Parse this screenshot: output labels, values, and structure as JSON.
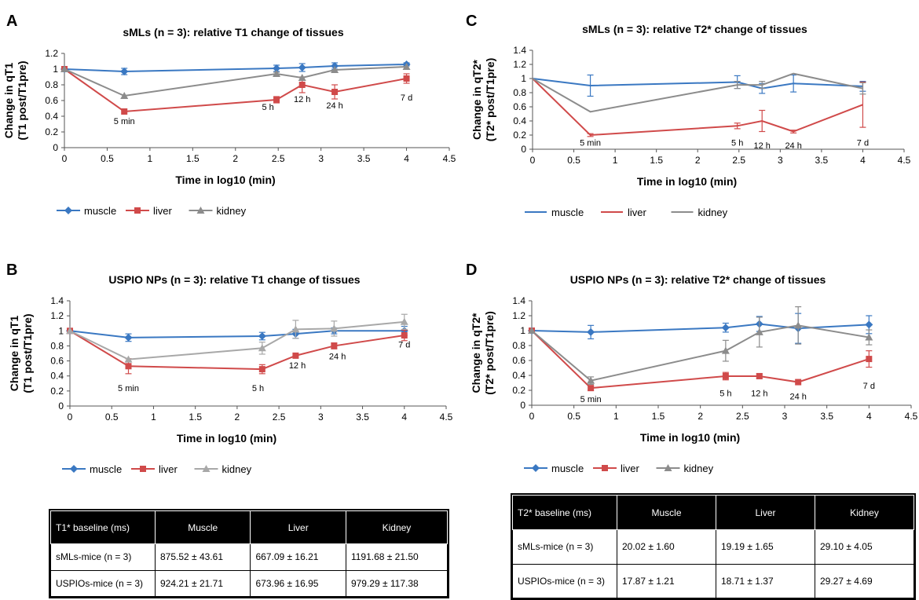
{
  "chart_data": [
    {
      "panel": "A",
      "type": "line",
      "title": "sMLs (n = 3): relative T1 change of tissues",
      "xlabel": "Time in log10 (min)",
      "ylabel": [
        "Change in qT1",
        "(T1 post/T1pre)"
      ],
      "xlim": [
        0,
        4.5
      ],
      "ylim": [
        0,
        1.2
      ],
      "xticks": [
        "0",
        "0.5",
        "1",
        "1.5",
        "2",
        "2.5",
        "3",
        "3.5",
        "4",
        "4.5"
      ],
      "yticks": [
        "0",
        "0.2",
        "0.4",
        "0.6",
        "0.8",
        "1",
        "1.2"
      ],
      "x": [
        0,
        0.7,
        2.48,
        2.78,
        3.16,
        4
      ],
      "annotations": [
        {
          "text": "5 min",
          "x": 0.7,
          "y": 0.3
        },
        {
          "text": "5 h",
          "x": 2.38,
          "y": 0.48
        },
        {
          "text": "12 h",
          "x": 2.78,
          "y": 0.58
        },
        {
          "text": "24 h",
          "x": 3.16,
          "y": 0.5
        },
        {
          "text": "7 d",
          "x": 4,
          "y": 0.6
        }
      ],
      "legend_style": "markers",
      "series": [
        {
          "name": "muscle",
          "color": "#3a78c2",
          "marker": "diamond",
          "values": [
            1.0,
            0.97,
            1.01,
            1.02,
            1.04,
            1.06
          ],
          "errors": [
            0,
            0.04,
            0.04,
            0.05,
            0.04,
            0.02
          ]
        },
        {
          "name": "liver",
          "color": "#d04a4a",
          "marker": "square",
          "values": [
            1.0,
            0.46,
            0.61,
            0.8,
            0.71,
            0.88
          ],
          "errors": [
            0,
            0,
            0.04,
            0.1,
            0.09,
            0.06
          ]
        },
        {
          "name": "kidney",
          "color": "#8c8c8c",
          "marker": "triangle",
          "values": [
            1.0,
            0.66,
            0.94,
            0.89,
            0.99,
            1.03
          ],
          "errors": [
            0,
            0,
            0.02,
            0,
            0,
            0
          ]
        }
      ]
    },
    {
      "panel": "B",
      "type": "line",
      "title": "USPIO NPs (n = 3): relative T1 change of tissues",
      "xlabel": "Time in log10 (min)",
      "ylabel": [
        "Change in qT1",
        "(T1 post/T1pre)"
      ],
      "xlim": [
        0,
        4.5
      ],
      "ylim": [
        0,
        1.4
      ],
      "xticks": [
        "0",
        "0.5",
        "1",
        "1.5",
        "2",
        "2.5",
        "3",
        "3.5",
        "4",
        "4.5"
      ],
      "yticks": [
        "0",
        "0.2",
        "0.4",
        "0.6",
        "0.8",
        "1",
        "1.2",
        "1.4"
      ],
      "x": [
        0,
        0.7,
        2.3,
        2.7,
        3.16,
        4
      ],
      "annotations": [
        {
          "text": "5 min",
          "x": 0.7,
          "y": 0.2
        },
        {
          "text": "5 h",
          "x": 2.25,
          "y": 0.2
        },
        {
          "text": "12 h",
          "x": 2.72,
          "y": 0.5
        },
        {
          "text": "24 h",
          "x": 3.2,
          "y": 0.62
        },
        {
          "text": "7 d",
          "x": 4,
          "y": 0.78
        }
      ],
      "legend_style": "markers",
      "series": [
        {
          "name": "muscle",
          "color": "#3a78c2",
          "marker": "diamond",
          "values": [
            1.0,
            0.91,
            0.93,
            0.96,
            1.0,
            1.0
          ],
          "errors": [
            0,
            0.05,
            0.05,
            0.06,
            0.04,
            0.06
          ]
        },
        {
          "name": "liver",
          "color": "#d04a4a",
          "marker": "square",
          "values": [
            1.0,
            0.53,
            0.49,
            0.67,
            0.8,
            0.94
          ],
          "errors": [
            0,
            0.1,
            0.06,
            0,
            0.04,
            0.07
          ]
        },
        {
          "name": "kidney",
          "color": "#a8a8a8",
          "marker": "triangle",
          "values": [
            1.0,
            0.62,
            0.77,
            1.02,
            1.03,
            1.12
          ],
          "errors": [
            0,
            0,
            0.08,
            0.12,
            0.1,
            0.1
          ]
        }
      ]
    },
    {
      "panel": "C",
      "type": "line",
      "title": "sMLs (n = 3): relative T2* change of tissues",
      "xlabel": "Time in log10 (min)",
      "ylabel": [
        "Change in qT2*",
        "(T2* post/T1pre)"
      ],
      "xlim": [
        0,
        4.5
      ],
      "ylim": [
        0,
        1.4
      ],
      "xticks": [
        "0",
        "0.5",
        "1",
        "1.5",
        "2",
        "2.5",
        "3",
        "3.5",
        "4",
        "4.5"
      ],
      "yticks": [
        "0",
        "0.2",
        "0.4",
        "0.6",
        "0.8",
        "1",
        "1.2",
        "1.4"
      ],
      "x": [
        0,
        0.7,
        2.48,
        2.78,
        3.16,
        4
      ],
      "annotations": [
        {
          "text": "5 min",
          "x": 0.7,
          "y": 0.05
        },
        {
          "text": "5 h",
          "x": 2.48,
          "y": 0.05
        },
        {
          "text": "12 h",
          "x": 2.78,
          "y": 0.01
        },
        {
          "text": "24 h",
          "x": 3.16,
          "y": 0.01
        },
        {
          "text": "7 d",
          "x": 4,
          "y": 0.05
        }
      ],
      "legend_style": "lines",
      "series": [
        {
          "name": "muscle",
          "color": "#3a78c2",
          "marker": "none",
          "values": [
            1.0,
            0.9,
            0.95,
            0.86,
            0.93,
            0.89
          ],
          "errors": [
            0,
            0.15,
            0.09,
            0.07,
            0.12,
            0.07
          ]
        },
        {
          "name": "liver",
          "color": "#d04a4a",
          "marker": "none",
          "values": [
            1.0,
            0.2,
            0.33,
            0.4,
            0.25,
            0.63
          ],
          "errors": [
            0,
            0.02,
            0.04,
            0.15,
            0.02,
            0.32
          ]
        },
        {
          "name": "kidney",
          "color": "#8c8c8c",
          "marker": "none",
          "values": [
            1.0,
            0.53,
            0.91,
            0.91,
            1.07,
            0.86
          ],
          "errors": [
            0,
            0,
            0.05,
            0.05,
            0,
            0.08
          ]
        }
      ]
    },
    {
      "panel": "D",
      "type": "line",
      "title": "USPIO NPs (n = 3): relative T2* change of tissues",
      "xlabel": "Time in log10 (min)",
      "ylabel": [
        "Change in qT2*",
        "(T2* post/T1pre)"
      ],
      "xlim": [
        0,
        4.5
      ],
      "ylim": [
        0,
        1.4
      ],
      "xticks": [
        "0",
        "0.5",
        "1",
        "1.5",
        "2",
        "2.5",
        "3",
        "3.5",
        "4",
        "4.5"
      ],
      "yticks": [
        "0",
        "0.2",
        "0.4",
        "0.6",
        "0.8",
        "1",
        "1.2",
        "1.4"
      ],
      "x": [
        0,
        0.7,
        2.3,
        2.7,
        3.16,
        4
      ],
      "annotations": [
        {
          "text": "5 min",
          "x": 0.7,
          "y": 0.04
        },
        {
          "text": "5 h",
          "x": 2.3,
          "y": 0.12
        },
        {
          "text": "12 h",
          "x": 2.7,
          "y": 0.12
        },
        {
          "text": "24 h",
          "x": 3.16,
          "y": 0.08
        },
        {
          "text": "7 d",
          "x": 4,
          "y": 0.22
        }
      ],
      "legend_style": "markers",
      "series": [
        {
          "name": "muscle",
          "color": "#3a78c2",
          "marker": "diamond",
          "values": [
            1.0,
            0.98,
            1.04,
            1.09,
            1.03,
            1.08
          ],
          "errors": [
            0,
            0.09,
            0.06,
            0.1,
            0.2,
            0.12
          ]
        },
        {
          "name": "liver",
          "color": "#d04a4a",
          "marker": "square",
          "values": [
            1.0,
            0.23,
            0.39,
            0.39,
            0.31,
            0.62
          ],
          "errors": [
            0,
            0.03,
            0.05,
            0.03,
            0,
            0.11
          ]
        },
        {
          "name": "kidney",
          "color": "#8c8c8c",
          "marker": "triangle",
          "values": [
            1.0,
            0.33,
            0.73,
            0.98,
            1.07,
            0.91
          ],
          "errors": [
            0,
            0.05,
            0.14,
            0.2,
            0.25,
            0.1
          ]
        }
      ]
    }
  ],
  "tables": {
    "t1": {
      "header": [
        "T1* baseline (ms)",
        "Muscle",
        "Liver",
        "Kidney"
      ],
      "rows": [
        [
          "sMLs-mice (n = 3)",
          "875.52 ± 43.61",
          "667.09 ± 16.21",
          "1191.68 ± 21.50"
        ],
        [
          "USPIOs-mice (n = 3)",
          "924.21 ± 21.71",
          "673.96 ± 16.95",
          "979.29 ± 117.38"
        ]
      ]
    },
    "t2": {
      "header": [
        "T2* baseline (ms)",
        "Muscle",
        "Liver",
        "Kidney"
      ],
      "rows": [
        [
          "sMLs-mice (n = 3)",
          "20.02 ± 1.60",
          "19.19 ± 1.65",
          "29.10 ± 4.05"
        ],
        [
          "USPIOs-mice (n = 3)",
          "17.87 ± 1.21",
          "18.71 ± 1.37",
          "29.27 ± 4.69"
        ]
      ]
    }
  }
}
